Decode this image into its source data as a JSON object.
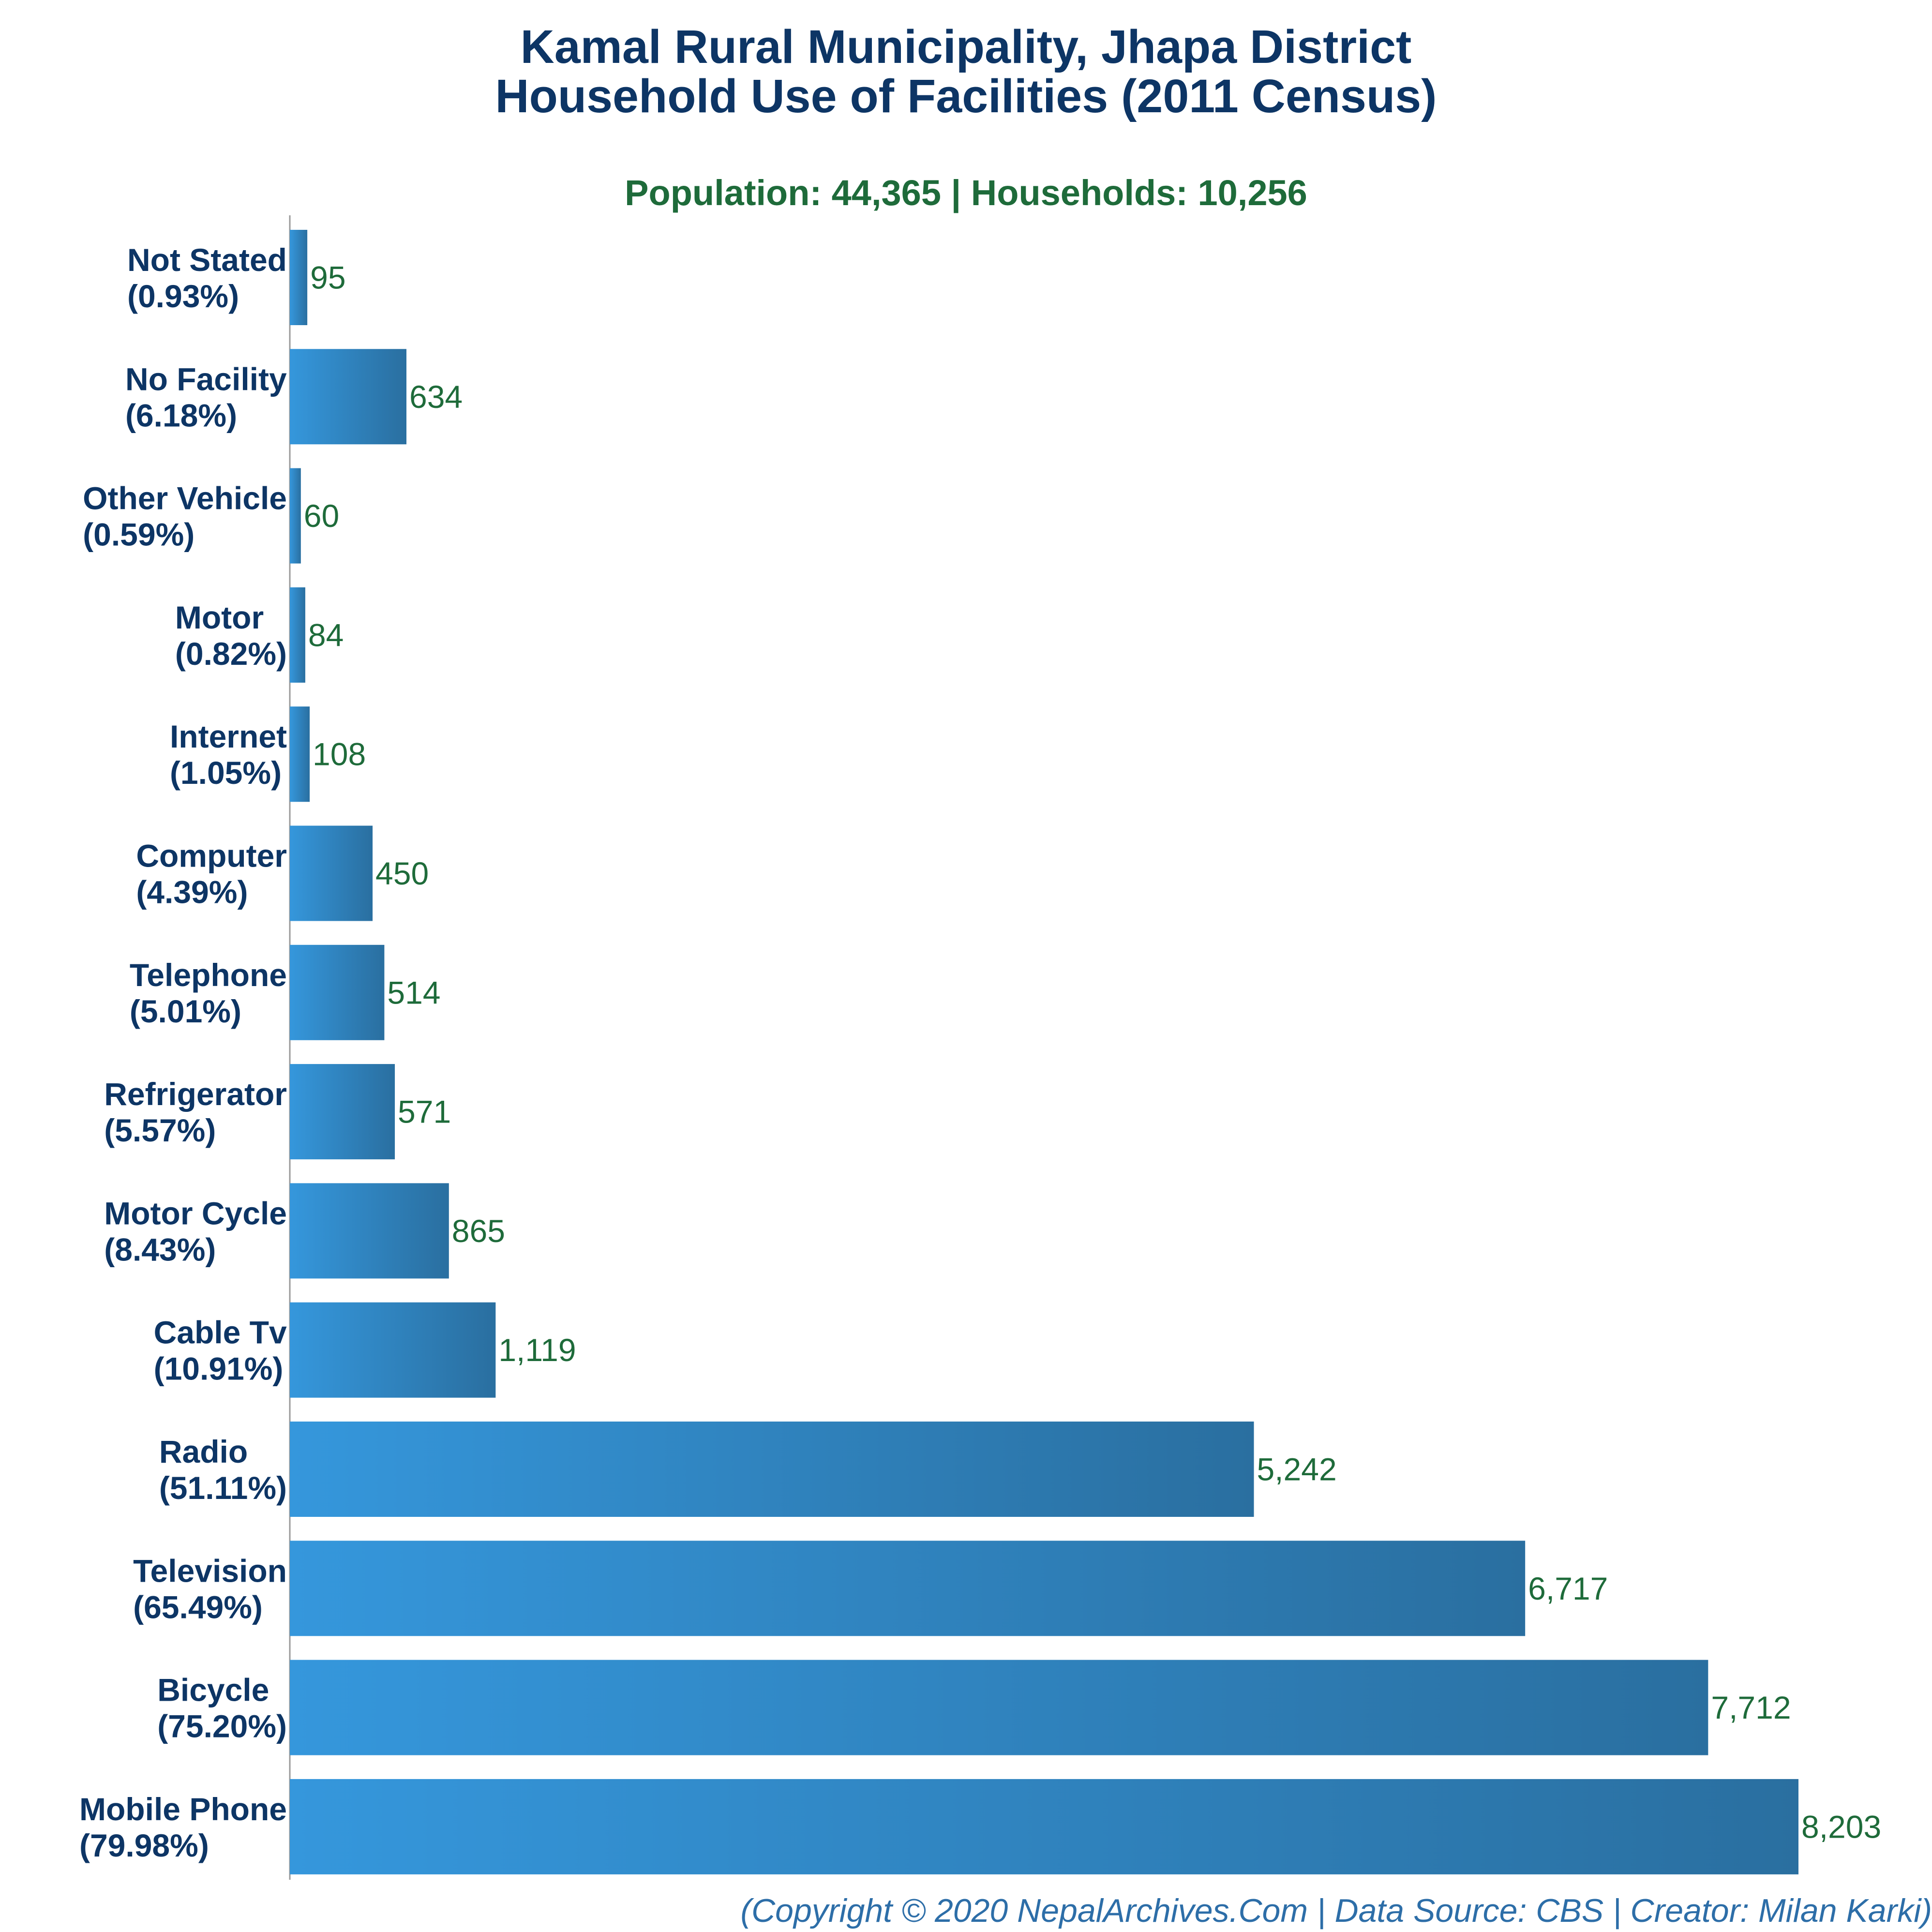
{
  "title_line1": "Kamal Rural Municipality, Jhapa District",
  "title_line2": "Household Use of Facilities (2011 Census)",
  "subtitle": "Population: 44,365 | Households: 10,256",
  "footer": "(Copyright © 2020 NepalArchives.Com | Data Source: CBS | Creator: Milan Karki)",
  "colors": {
    "bar_start": "#3597dc",
    "bar_end": "#2a6fa0",
    "title": "#0d3565",
    "value": "#1e6b3a"
  },
  "chart_data": {
    "type": "bar",
    "orientation": "horizontal",
    "title": "Kamal Rural Municipality, Jhapa District Household Use of Facilities (2011 Census)",
    "categories": [
      "Not Stated",
      "No Facility",
      "Other Vehicle",
      "Motor",
      "Internet",
      "Computer",
      "Telephone",
      "Refrigerator",
      "Motor Cycle",
      "Cable Tv",
      "Radio",
      "Television",
      "Bicycle",
      "Mobile Phone"
    ],
    "percentages": [
      "(0.93%)",
      "(6.18%)",
      "(0.59%)",
      "(0.82%)",
      "(1.05%)",
      "(4.39%)",
      "(5.01%)",
      "(5.57%)",
      "(8.43%)",
      "(10.91%)",
      "(51.11%)",
      "(65.49%)",
      "(75.20%)",
      "(79.98%)"
    ],
    "values": [
      95,
      634,
      60,
      84,
      108,
      450,
      514,
      571,
      865,
      1119,
      5242,
      6717,
      7712,
      8203
    ],
    "value_labels": [
      "95",
      "634",
      "60",
      "84",
      "108",
      "450",
      "514",
      "571",
      "865",
      "1,119",
      "5,242",
      "6,717",
      "7,712",
      "8,203"
    ],
    "xlim": [
      0,
      8203
    ],
    "grid": false,
    "legend": "none"
  }
}
